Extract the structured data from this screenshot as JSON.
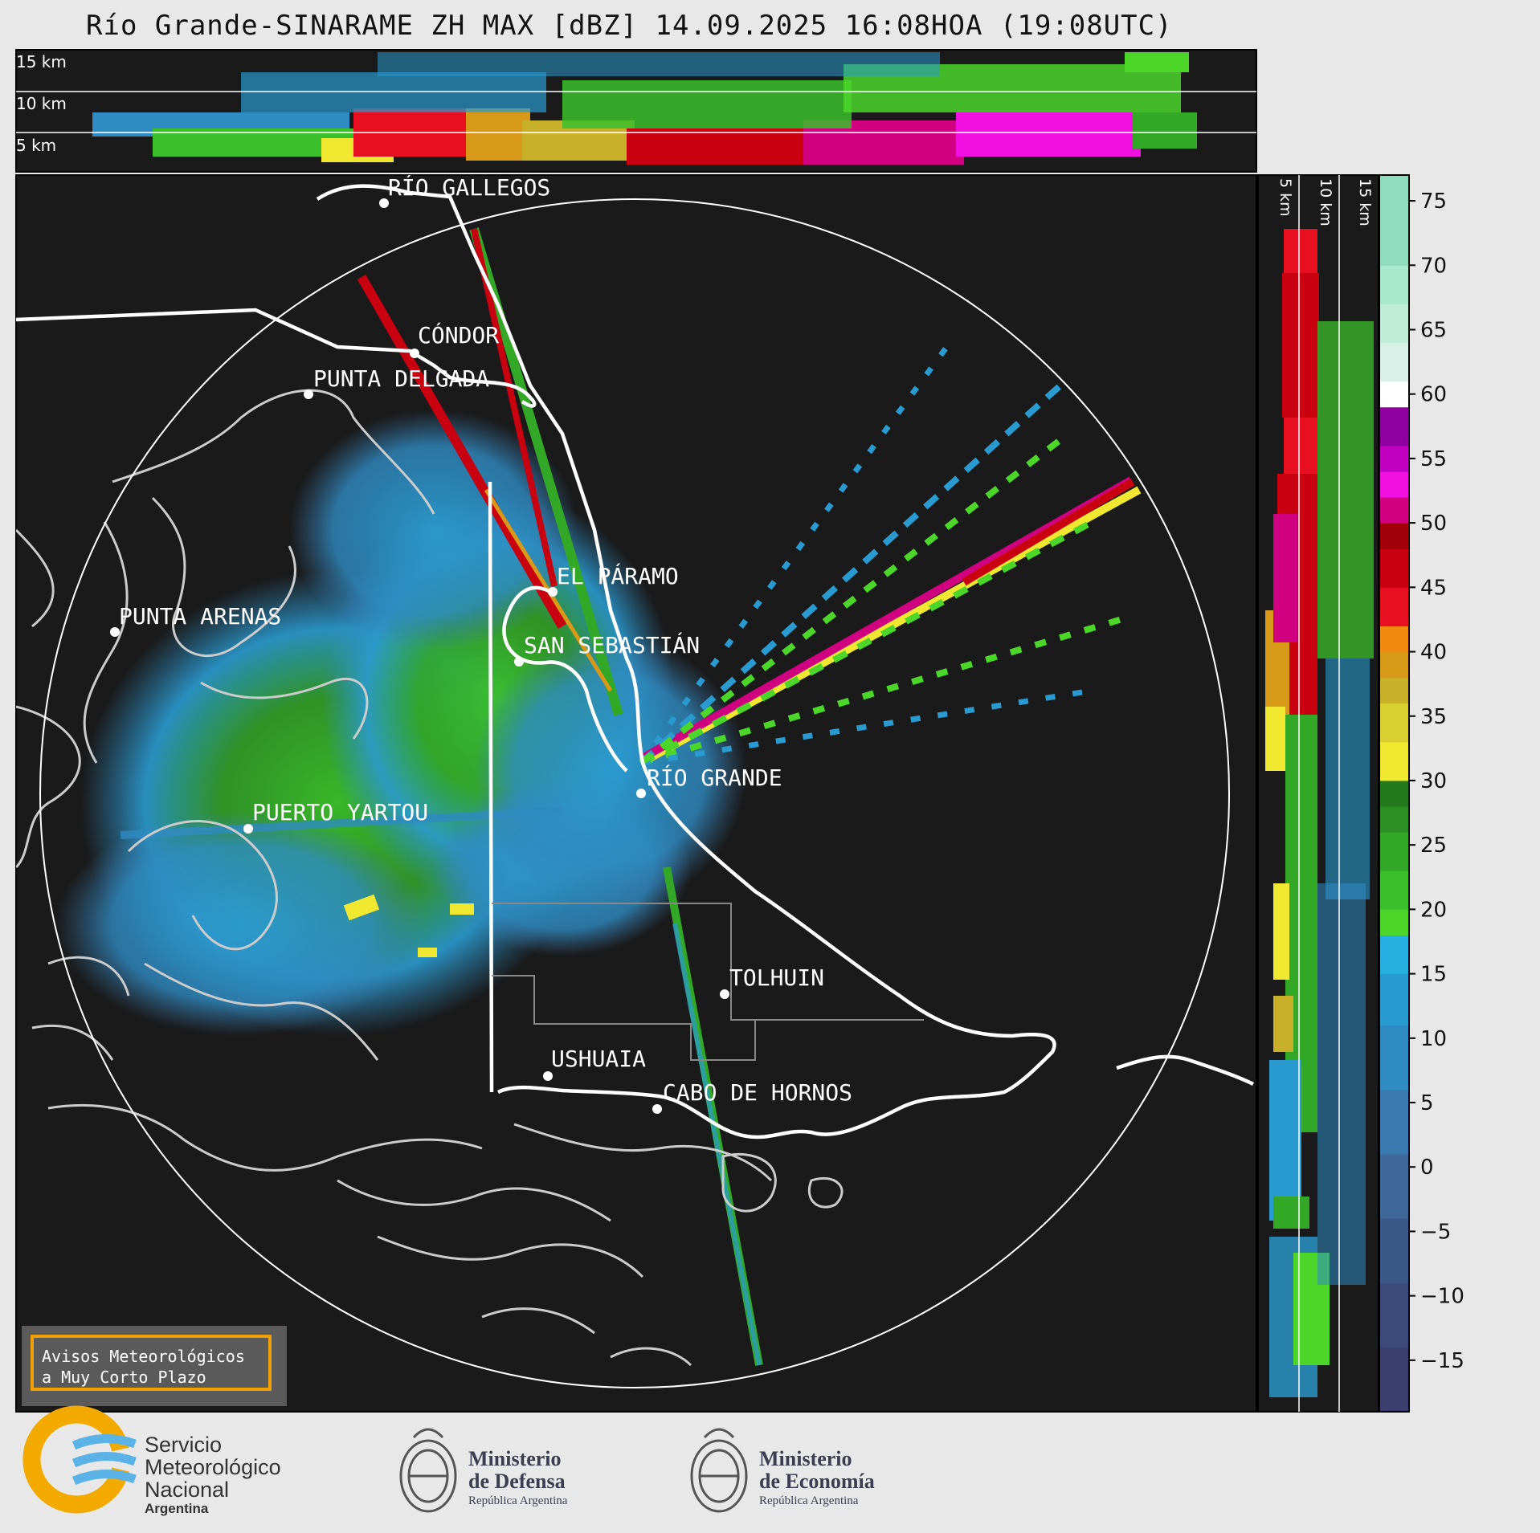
{
  "title": "Río Grande-SINARAME ZH MAX [dBZ] 14.09.2025 16:08HOA (19:08UTC)",
  "colors": {
    "background": "#e8e8e8",
    "map_background": "#1a1a1a",
    "coast": "#cccccc",
    "border": "#ffffff",
    "warning_border": "#f0a000"
  },
  "top_section": {
    "height_labels": [
      "15 km",
      "10 km",
      "5 km"
    ]
  },
  "side_section": {
    "height_labels": [
      "5 km",
      "10 km",
      "15 km"
    ]
  },
  "cities": [
    {
      "name": "RÍO GALLEGOS"
    },
    {
      "name": "CÓNDOR"
    },
    {
      "name": "PUNTA DELGADA"
    },
    {
      "name": "EL PÁRAMO"
    },
    {
      "name": "PUNTA ARENAS"
    },
    {
      "name": "SAN SEBASTIÁN"
    },
    {
      "name": "RÍO GRANDE"
    },
    {
      "name": "PUERTO YARTOU"
    },
    {
      "name": "TOLHUIN"
    },
    {
      "name": "USHUAIA"
    },
    {
      "name": "CABO DE HORNOS"
    }
  ],
  "colorbar": {
    "unit": "dBZ",
    "min": -19,
    "max": 77,
    "ticks": [
      "75",
      "70",
      "65",
      "60",
      "55",
      "50",
      "45",
      "40",
      "35",
      "30",
      "25",
      "20",
      "15",
      "10",
      "5",
      "0",
      "−5",
      "−10",
      "−15"
    ],
    "tick_values": [
      75,
      70,
      65,
      60,
      55,
      50,
      45,
      40,
      35,
      30,
      25,
      20,
      15,
      10,
      5,
      0,
      -5,
      -10,
      -15
    ],
    "bands": [
      {
        "from": -19,
        "to": -14,
        "color": "#3a3f6e"
      },
      {
        "from": -14,
        "to": -9,
        "color": "#3b4a7a"
      },
      {
        "from": -9,
        "to": -4,
        "color": "#3c5888"
      },
      {
        "from": -4,
        "to": 1,
        "color": "#3d6898"
      },
      {
        "from": 1,
        "to": 6,
        "color": "#3b7ab0"
      },
      {
        "from": 6,
        "to": 11,
        "color": "#2f8bc2"
      },
      {
        "from": 11,
        "to": 15,
        "color": "#2a9bd0"
      },
      {
        "from": 15,
        "to": 18,
        "color": "#25b0e0"
      },
      {
        "from": 18,
        "to": 20,
        "color": "#4cd62a"
      },
      {
        "from": 20,
        "to": 23,
        "color": "#3bbf2a"
      },
      {
        "from": 23,
        "to": 26,
        "color": "#33a827"
      },
      {
        "from": 26,
        "to": 28,
        "color": "#2b9023"
      },
      {
        "from": 28,
        "to": 30,
        "color": "#237a1e"
      },
      {
        "from": 30,
        "to": 33,
        "color": "#f0e830"
      },
      {
        "from": 33,
        "to": 36,
        "color": "#d8d030"
      },
      {
        "from": 36,
        "to": 38,
        "color": "#c8b028"
      },
      {
        "from": 38,
        "to": 40,
        "color": "#d89818"
      },
      {
        "from": 40,
        "to": 42,
        "color": "#f08a10"
      },
      {
        "from": 42,
        "to": 45,
        "color": "#e81020"
      },
      {
        "from": 45,
        "to": 48,
        "color": "#c80010"
      },
      {
        "from": 48,
        "to": 50,
        "color": "#a00008"
      },
      {
        "from": 50,
        "to": 52,
        "color": "#d00080"
      },
      {
        "from": 52,
        "to": 54,
        "color": "#f010e0"
      },
      {
        "from": 54,
        "to": 56,
        "color": "#c000c0"
      },
      {
        "from": 56,
        "to": 59,
        "color": "#9000a0"
      },
      {
        "from": 59,
        "to": 61,
        "color": "#ffffff"
      },
      {
        "from": 61,
        "to": 64,
        "color": "#d8f0e8"
      },
      {
        "from": 64,
        "to": 67,
        "color": "#c0ecd8"
      },
      {
        "from": 67,
        "to": 70,
        "color": "#a8e8cc"
      },
      {
        "from": 70,
        "to": 77,
        "color": "#90dcc0"
      }
    ]
  },
  "warning_box": {
    "line1": "Avisos Meteorológicos",
    "line2": "a Muy Corto Plazo"
  },
  "logos": {
    "smn": {
      "line1": "Servicio",
      "line2": "Meteorológico",
      "line3": "Nacional",
      "line4": "Argentina"
    },
    "defensa": {
      "line1": "Ministerio",
      "line2": "de Defensa",
      "line3": "República Argentina"
    },
    "economia": {
      "line1": "Ministerio",
      "line2": "de Economía",
      "line3": "República Argentina"
    }
  }
}
